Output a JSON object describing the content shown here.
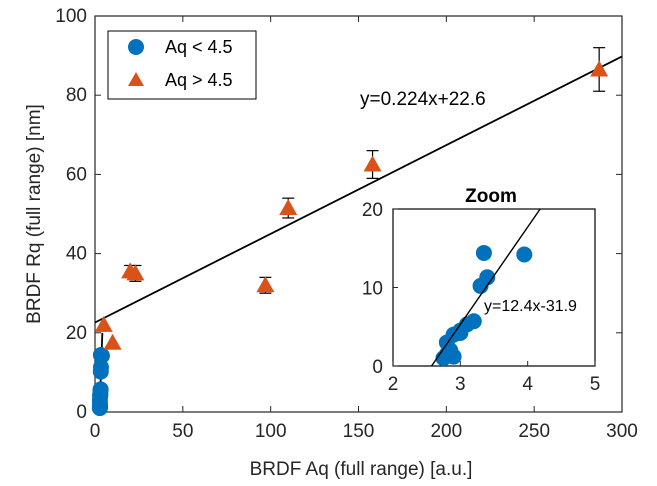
{
  "chart_data": [
    {
      "type": "scatter",
      "panel": "main",
      "xlabel": "BRDF Aq (full range) [a.u.]",
      "ylabel": "BRDF Rq (full range) [nm]",
      "xlim": [
        0,
        300
      ],
      "ylim": [
        0,
        100
      ],
      "xticks": [
        "0",
        "50",
        "100",
        "150",
        "200",
        "250",
        "300"
      ],
      "yticks": [
        "0",
        "20",
        "40",
        "60",
        "80",
        "100"
      ],
      "legend_position": "top-left",
      "series": [
        {
          "name": "Aq < 4.5",
          "marker": "circle",
          "color": "#0072BD",
          "x": [
            2.8,
            2.8,
            2.9,
            3.0,
            3.0,
            3.1,
            3.2,
            3.3,
            3.35,
            3.4,
            3.95,
            2.85,
            2.9,
            2.75
          ],
          "y": [
            1.5,
            3.0,
            4.0,
            4.2,
            4.5,
            5.3,
            5.7,
            10.2,
            14.4,
            11.3,
            14.2,
            2.0,
            1.2,
            1.0
          ]
        },
        {
          "name": "Aq > 4.5",
          "marker": "triangle",
          "color": "#D95319",
          "x": [
            5,
            10,
            20,
            23,
            97,
            110,
            158,
            287
          ],
          "y": [
            22,
            17.5,
            35.5,
            35,
            32,
            51.5,
            62.5,
            86.5
          ],
          "err": [
            0,
            0,
            1.5,
            2,
            2,
            2.5,
            3.5,
            5.5
          ]
        }
      ],
      "fit": {
        "slope": 0.224,
        "intercept": 22.6,
        "label": "y=0.224x+22.6"
      }
    },
    {
      "type": "scatter",
      "panel": "inset",
      "title": "Zoom",
      "xlim": [
        2,
        5
      ],
      "ylim": [
        0,
        20
      ],
      "xticks": [
        "2",
        "3",
        "4",
        "5"
      ],
      "yticks": [
        "0",
        "10",
        "20"
      ],
      "fit": {
        "slope": 12.4,
        "intercept": -31.9,
        "label": "y=12.4x-31.9"
      }
    }
  ]
}
